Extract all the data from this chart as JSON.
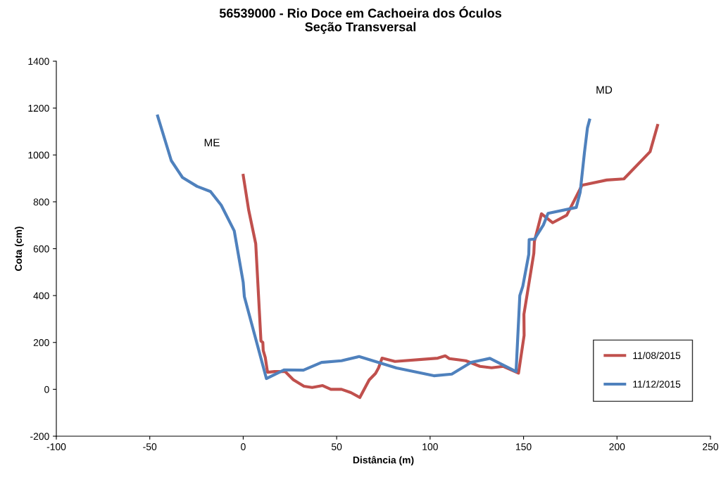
{
  "chart_data": {
    "type": "line",
    "title": "56539000 - Rio Doce em Cachoeira dos Óculos\nSeção Transversal",
    "xlabel": "Distância (m)",
    "ylabel": "Cota (cm)",
    "xlim": [
      -100,
      250
    ],
    "xticks": [
      -100,
      -50,
      0,
      50,
      100,
      150,
      200,
      250
    ],
    "ylim": [
      -200,
      1400
    ],
    "yticks": [
      -200,
      0,
      200,
      400,
      600,
      800,
      1000,
      1200,
      1400
    ],
    "grid": false,
    "legend": "bottom right",
    "marker": "none",
    "line_style": "solid",
    "annotations": [
      "ME",
      "MD"
    ],
    "series": [
      {
        "name": "11/08/2015",
        "color": "#c0504d",
        "x": [
          0,
          2.9,
          6.7,
          9.5,
          10.5,
          10.7,
          11.8,
          13,
          16.8,
          22.4,
          26.8,
          32.5,
          36.9,
          42.5,
          46.9,
          52.6,
          57.6,
          62.4,
          67.4,
          70.8,
          72.4,
          74.3,
          81.2,
          104.1,
          108.1,
          110.3,
          119.1,
          126.7,
          132.9,
          139.2,
          147.3,
          150.3,
          150.2,
          155.5,
          155.8,
          159.6,
          165.6,
          173.1,
          181.3,
          194.5,
          203.7,
          217.7,
          221.7
        ],
        "values": [
          913,
          766,
          621,
          206,
          200,
          166,
          136,
          73,
          76,
          76,
          41,
          13,
          8,
          16,
          0,
          0,
          -14,
          -35,
          40,
          68,
          91,
          133,
          119,
          133,
          143,
          131,
          122,
          98,
          92,
          98,
          69,
          230,
          320,
          581,
          631,
          749,
          711,
          743,
          871,
          893,
          898,
          1014,
          1126
        ]
      },
      {
        "name": "11/12/2015",
        "color": "#4f81bd",
        "x": [
          -45.8,
          -38.5,
          -32.5,
          -24.7,
          -17.5,
          -11.8,
          -4.8,
          0,
          0.6,
          12.4,
          22,
          32.2,
          41.9,
          52.6,
          62,
          82,
          102,
          111.6,
          122,
          132,
          146,
          148,
          149.6,
          152.8,
          153,
          155.9,
          160.6,
          163.1,
          178.2,
          180.3,
          182.6,
          184.2,
          185.3
        ],
        "values": [
          1166,
          976,
          904,
          866,
          844,
          786,
          676,
          456,
          396,
          46,
          83,
          82,
          115,
          122,
          140,
          91,
          58,
          65,
          115,
          132,
          76,
          400,
          440,
          576,
          639,
          641,
          701,
          751,
          776,
          841,
          1011,
          1116,
          1149
        ]
      }
    ]
  }
}
